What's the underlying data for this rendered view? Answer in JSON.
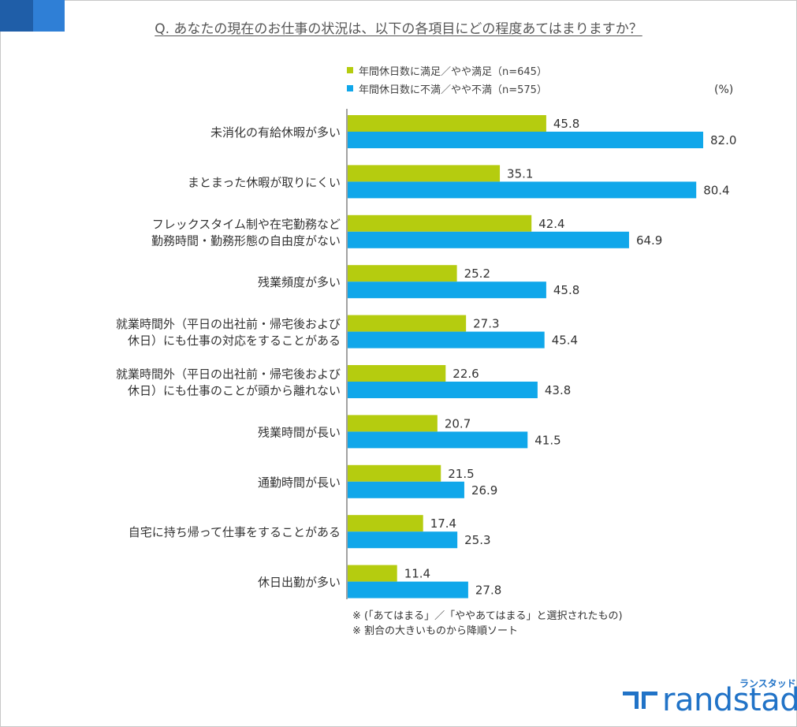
{
  "question": "Q. あなたの現在のお仕事の状況は、以下の各項目にどの程度あてはまりますか？",
  "unit": "(%)",
  "colors": {
    "satisfied": "#b5cc0f",
    "unsatisfied": "#10a7ea",
    "corner_dark": "#1f5ea8",
    "corner_light": "#2f7fd6"
  },
  "notes": [
    "※ (「あてはまる」／「ややあてはまる」と選択されたもの)",
    "※ 割合の大きいものから降順ソート"
  ],
  "brand": {
    "name": "randstad",
    "kana": "ランスタッド",
    "icon": "randstad-logo-icon"
  },
  "chart_data": {
    "type": "bar",
    "orientation": "horizontal",
    "xlim": [
      0,
      100
    ],
    "grid": false,
    "legend_position": "top",
    "categories": [
      [
        "未消化の有給休暇が多い"
      ],
      [
        "まとまった休暇が取りにくい"
      ],
      [
        "フレックスタイム制や在宅勤務など",
        "勤務時間・勤務形態の自由度がない"
      ],
      [
        "残業頻度が多い"
      ],
      [
        "就業時間外（平日の出社前・帰宅後および",
        "休日）にも仕事の対応をすることがある"
      ],
      [
        "就業時間外（平日の出社前・帰宅後および",
        "休日）にも仕事のことが頭から離れない"
      ],
      [
        "残業時間が長い"
      ],
      [
        "通勤時間が長い"
      ],
      [
        "自宅に持ち帰って仕事をすることがある"
      ],
      [
        "休日出勤が多い"
      ]
    ],
    "series": [
      {
        "name": "年間休日数に満足／やや満足（n=645）",
        "color": "#b5cc0f",
        "values": [
          45.8,
          35.1,
          42.4,
          25.2,
          27.3,
          22.6,
          20.7,
          21.5,
          17.4,
          11.4
        ]
      },
      {
        "name": "年間休日数に不満／やや不満（n=575）",
        "color": "#10a7ea",
        "values": [
          82.0,
          80.4,
          64.9,
          45.8,
          45.4,
          43.8,
          41.5,
          26.9,
          25.3,
          27.8
        ]
      }
    ]
  }
}
